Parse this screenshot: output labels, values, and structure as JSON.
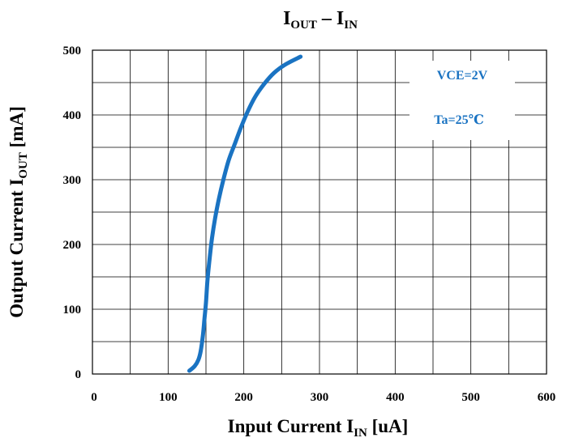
{
  "chart_data": {
    "type": "line",
    "title": {
      "main": "I",
      "sub1": "OUT",
      "sep": " – ",
      "main2": "I",
      "sub2": "IN"
    },
    "xlabel": {
      "prefix": "Input Current I",
      "sub": "IN",
      "suffix": " [uA]"
    },
    "ylabel": {
      "prefix": "Output Current I",
      "sub": "OUT",
      "suffix": " [mA]"
    },
    "xlim": [
      0,
      600
    ],
    "ylim": [
      0,
      500
    ],
    "x_ticks": [
      "0",
      "100",
      "200",
      "300",
      "400",
      "500",
      "600"
    ],
    "y_ticks": [
      "0",
      "100",
      "200",
      "300",
      "400",
      "500"
    ],
    "grid": true,
    "annotations": [
      "VCE=2V",
      "Ta=25℃"
    ],
    "series": [
      {
        "color": "#1a73c2",
        "x": [
          128,
          135,
          140,
          143,
          146,
          148,
          150,
          152,
          155,
          158,
          162,
          167,
          173,
          180,
          188,
          196,
          205,
          215,
          227,
          240,
          255,
          275
        ],
        "y": [
          5,
          12,
          22,
          35,
          60,
          85,
          110,
          145,
          180,
          210,
          240,
          270,
          300,
          330,
          355,
          380,
          405,
          428,
          448,
          465,
          478,
          490
        ]
      }
    ]
  }
}
